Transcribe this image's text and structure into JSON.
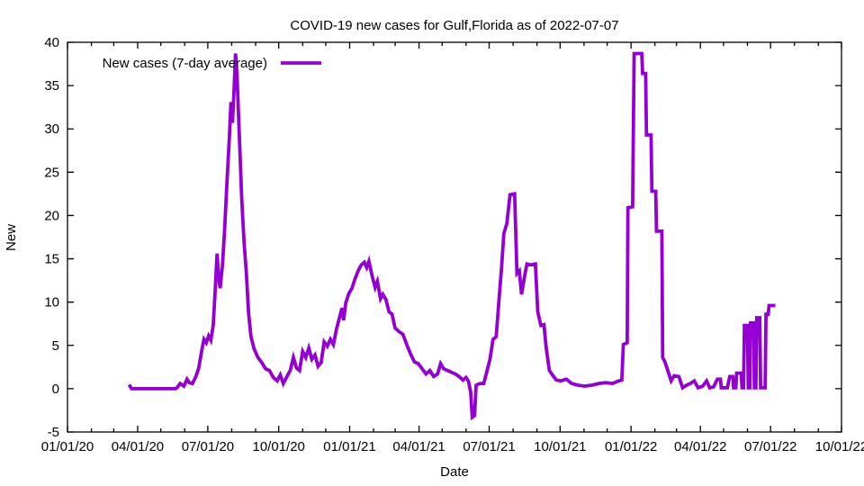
{
  "chart_data": {
    "type": "line",
    "title": "COVID-19 new cases for Gulf,Florida as of 2022-07-07",
    "xlabel": "Date",
    "ylabel": "New",
    "legend_position": "top-left-inside",
    "grid": false,
    "x_axis": {
      "start": "2020-01-01",
      "end": "2022-10-01",
      "major_tick_every_months": 3,
      "minor_tick_every_months": 1,
      "tick_labels": [
        "01/01/20",
        "04/01/20",
        "07/01/20",
        "10/01/20",
        "01/01/21",
        "04/01/21",
        "07/01/21",
        "10/01/21",
        "01/01/22",
        "04/01/22",
        "07/01/22",
        "10/01/22"
      ]
    },
    "y_axis": {
      "min": -5,
      "max": 40,
      "tick_step": 5,
      "tick_labels": [
        "-5",
        "0",
        "5",
        "10",
        "15",
        "20",
        "25",
        "30",
        "35",
        "40"
      ]
    },
    "series": [
      {
        "name": "New cases (7-day average)",
        "color": "#9400d3",
        "line_width": 3.8,
        "points": [
          [
            "2020-03-22",
            0.3
          ],
          [
            "2020-03-24",
            0
          ],
          [
            "2020-04-10",
            0
          ],
          [
            "2020-04-25",
            0
          ],
          [
            "2020-05-10",
            0
          ],
          [
            "2020-05-20",
            0
          ],
          [
            "2020-05-22",
            0.1
          ],
          [
            "2020-05-26",
            0.6
          ],
          [
            "2020-05-31",
            0.3
          ],
          [
            "2020-06-04",
            1.1
          ],
          [
            "2020-06-07",
            0.7
          ],
          [
            "2020-06-11",
            0.6
          ],
          [
            "2020-06-15",
            1.3
          ],
          [
            "2020-06-19",
            2.3
          ],
          [
            "2020-06-23",
            4.3
          ],
          [
            "2020-06-26",
            5.7
          ],
          [
            "2020-06-29",
            5.3
          ],
          [
            "2020-07-02",
            6.1
          ],
          [
            "2020-07-05",
            5.6
          ],
          [
            "2020-07-08",
            7.3
          ],
          [
            "2020-07-10",
            10.4
          ],
          [
            "2020-07-13",
            15.6
          ],
          [
            "2020-07-15",
            12.9
          ],
          [
            "2020-07-17",
            11.6
          ],
          [
            "2020-07-20",
            14.3
          ],
          [
            "2020-07-23",
            18.6
          ],
          [
            "2020-07-26",
            24.1
          ],
          [
            "2020-07-29",
            29.1
          ],
          [
            "2020-07-31",
            33.1
          ],
          [
            "2020-08-02",
            30.7
          ],
          [
            "2020-08-04",
            34.3
          ],
          [
            "2020-08-06",
            38.7
          ],
          [
            "2020-08-08",
            36.1
          ],
          [
            "2020-08-11",
            29.0
          ],
          [
            "2020-08-14",
            21.9
          ],
          [
            "2020-08-17",
            16.9
          ],
          [
            "2020-08-20",
            13.4
          ],
          [
            "2020-08-23",
            8.6
          ],
          [
            "2020-08-26",
            6.0
          ],
          [
            "2020-08-30",
            4.6
          ],
          [
            "2020-09-04",
            3.6
          ],
          [
            "2020-09-09",
            3.0
          ],
          [
            "2020-09-14",
            2.3
          ],
          [
            "2020-09-19",
            2.1
          ],
          [
            "2020-09-24",
            1.3
          ],
          [
            "2020-09-29",
            0.9
          ],
          [
            "2020-10-03",
            1.6
          ],
          [
            "2020-10-07",
            0.6
          ],
          [
            "2020-10-11",
            1.3
          ],
          [
            "2020-10-16",
            2.1
          ],
          [
            "2020-10-20",
            3.6
          ],
          [
            "2020-10-24",
            2.4
          ],
          [
            "2020-10-28",
            2.1
          ],
          [
            "2020-11-01",
            4.3
          ],
          [
            "2020-11-05",
            3.6
          ],
          [
            "2020-11-09",
            4.7
          ],
          [
            "2020-11-13",
            3.4
          ],
          [
            "2020-11-17",
            3.9
          ],
          [
            "2020-11-21",
            2.6
          ],
          [
            "2020-11-25",
            3.0
          ],
          [
            "2020-11-29",
            5.4
          ],
          [
            "2020-12-03",
            4.9
          ],
          [
            "2020-12-07",
            5.7
          ],
          [
            "2020-12-11",
            5.1
          ],
          [
            "2020-12-15",
            6.9
          ],
          [
            "2020-12-19",
            8.3
          ],
          [
            "2020-12-22",
            9.3
          ],
          [
            "2020-12-24",
            7.9
          ],
          [
            "2020-12-27",
            9.9
          ],
          [
            "2020-12-31",
            11.0
          ],
          [
            "2021-01-04",
            11.6
          ],
          [
            "2021-01-08",
            12.7
          ],
          [
            "2021-01-12",
            13.6
          ],
          [
            "2021-01-16",
            14.3
          ],
          [
            "2021-01-20",
            14.6
          ],
          [
            "2021-01-23",
            14.0
          ],
          [
            "2021-01-26",
            14.7
          ],
          [
            "2021-01-30",
            13.1
          ],
          [
            "2021-02-03",
            11.7
          ],
          [
            "2021-02-06",
            12.4
          ],
          [
            "2021-02-10",
            10.4
          ],
          [
            "2021-02-13",
            10.9
          ],
          [
            "2021-02-17",
            10.3
          ],
          [
            "2021-02-21",
            8.9
          ],
          [
            "2021-02-25",
            8.6
          ],
          [
            "2021-03-01",
            7.0
          ],
          [
            "2021-03-06",
            6.6
          ],
          [
            "2021-03-11",
            6.3
          ],
          [
            "2021-03-16",
            5.1
          ],
          [
            "2021-03-21",
            4.0
          ],
          [
            "2021-03-26",
            3.1
          ],
          [
            "2021-03-31",
            2.9
          ],
          [
            "2021-04-05",
            2.3
          ],
          [
            "2021-04-10",
            1.7
          ],
          [
            "2021-04-15",
            2.1
          ],
          [
            "2021-04-20",
            1.4
          ],
          [
            "2021-04-25",
            1.7
          ],
          [
            "2021-04-29",
            2.9
          ],
          [
            "2021-05-03",
            2.3
          ],
          [
            "2021-05-08",
            2.1
          ],
          [
            "2021-05-13",
            1.9
          ],
          [
            "2021-05-18",
            1.7
          ],
          [
            "2021-05-23",
            1.4
          ],
          [
            "2021-05-28",
            1.0
          ],
          [
            "2021-06-01",
            1.3
          ],
          [
            "2021-06-04",
            0.9
          ],
          [
            "2021-06-07",
            -0.4
          ],
          [
            "2021-06-09",
            -3.3
          ],
          [
            "2021-06-12",
            -3.1
          ],
          [
            "2021-06-14",
            0.4
          ],
          [
            "2021-06-19",
            0.6
          ],
          [
            "2021-06-24",
            0.6
          ],
          [
            "2021-06-28",
            2.0
          ],
          [
            "2021-07-02",
            3.4
          ],
          [
            "2021-07-06",
            5.7
          ],
          [
            "2021-07-10",
            6.0
          ],
          [
            "2021-07-14",
            10.6
          ],
          [
            "2021-07-17",
            14.0
          ],
          [
            "2021-07-20",
            17.9
          ],
          [
            "2021-07-24",
            19.1
          ],
          [
            "2021-07-28",
            22.4
          ],
          [
            "2021-08-03",
            22.5
          ],
          [
            "2021-08-06",
            13.3
          ],
          [
            "2021-08-09",
            13.6
          ],
          [
            "2021-08-12",
            10.9
          ],
          [
            "2021-08-16",
            13.0
          ],
          [
            "2021-08-19",
            14.4
          ],
          [
            "2021-08-24",
            14.3
          ],
          [
            "2021-08-30",
            14.4
          ],
          [
            "2021-09-02",
            8.9
          ],
          [
            "2021-09-06",
            7.3
          ],
          [
            "2021-09-10",
            7.4
          ],
          [
            "2021-09-13",
            4.7
          ],
          [
            "2021-09-17",
            2.1
          ],
          [
            "2021-09-21",
            1.6
          ],
          [
            "2021-09-26",
            1.0
          ],
          [
            "2021-10-02",
            0.9
          ],
          [
            "2021-10-09",
            1.1
          ],
          [
            "2021-10-16",
            0.6
          ],
          [
            "2021-10-24",
            0.4
          ],
          [
            "2021-11-02",
            0.3
          ],
          [
            "2021-11-11",
            0.4
          ],
          [
            "2021-11-20",
            0.6
          ],
          [
            "2021-11-29",
            0.7
          ],
          [
            "2021-12-08",
            0.6
          ],
          [
            "2021-12-16",
            0.9
          ],
          [
            "2021-12-20",
            1.0
          ],
          [
            "2021-12-22",
            5.1
          ],
          [
            "2021-12-27",
            5.3
          ],
          [
            "2021-12-28",
            20.9
          ],
          [
            "2022-01-03",
            21.0
          ],
          [
            "2022-01-05",
            38.7
          ],
          [
            "2022-01-15",
            38.7
          ],
          [
            "2022-01-16",
            36.4
          ],
          [
            "2022-01-20",
            36.4
          ],
          [
            "2022-01-21",
            29.3
          ],
          [
            "2022-01-27",
            29.3
          ],
          [
            "2022-01-28",
            22.8
          ],
          [
            "2022-02-02",
            22.8
          ],
          [
            "2022-02-03",
            18.2
          ],
          [
            "2022-02-10",
            18.2
          ],
          [
            "2022-02-11",
            3.6
          ],
          [
            "2022-02-14",
            3.1
          ],
          [
            "2022-02-18",
            2.0
          ],
          [
            "2022-02-22",
            0.9
          ],
          [
            "2022-02-26",
            1.5
          ],
          [
            "2022-03-04",
            1.4
          ],
          [
            "2022-03-09",
            0.1
          ],
          [
            "2022-03-14",
            0.4
          ],
          [
            "2022-03-19",
            0.6
          ],
          [
            "2022-03-24",
            0.9
          ],
          [
            "2022-03-29",
            0.1
          ],
          [
            "2022-04-04",
            0.3
          ],
          [
            "2022-04-09",
            0.9
          ],
          [
            "2022-04-13",
            0.1
          ],
          [
            "2022-04-18",
            0.2
          ],
          [
            "2022-04-23",
            1.1
          ],
          [
            "2022-04-27",
            1.1
          ],
          [
            "2022-04-28",
            0.1
          ],
          [
            "2022-05-06",
            0.1
          ],
          [
            "2022-05-09",
            1.4
          ],
          [
            "2022-05-13",
            1.4
          ],
          [
            "2022-05-14",
            0.1
          ],
          [
            "2022-05-17",
            0.1
          ],
          [
            "2022-05-18",
            1.8
          ],
          [
            "2022-05-24",
            1.8
          ],
          [
            "2022-05-25",
            0.1
          ],
          [
            "2022-05-27",
            0.1
          ],
          [
            "2022-05-28",
            7.3
          ],
          [
            "2022-06-01",
            7.3
          ],
          [
            "2022-06-02",
            0.1
          ],
          [
            "2022-06-04",
            0.1
          ],
          [
            "2022-06-05",
            7.6
          ],
          [
            "2022-06-09",
            7.6
          ],
          [
            "2022-06-10",
            0.1
          ],
          [
            "2022-06-12",
            0.1
          ],
          [
            "2022-06-13",
            8.2
          ],
          [
            "2022-06-17",
            8.2
          ],
          [
            "2022-06-18",
            0.1
          ],
          [
            "2022-06-24",
            0.1
          ],
          [
            "2022-06-25",
            8.6
          ],
          [
            "2022-06-28",
            8.6
          ],
          [
            "2022-06-29",
            9.6
          ],
          [
            "2022-07-05",
            9.6
          ]
        ]
      }
    ]
  }
}
